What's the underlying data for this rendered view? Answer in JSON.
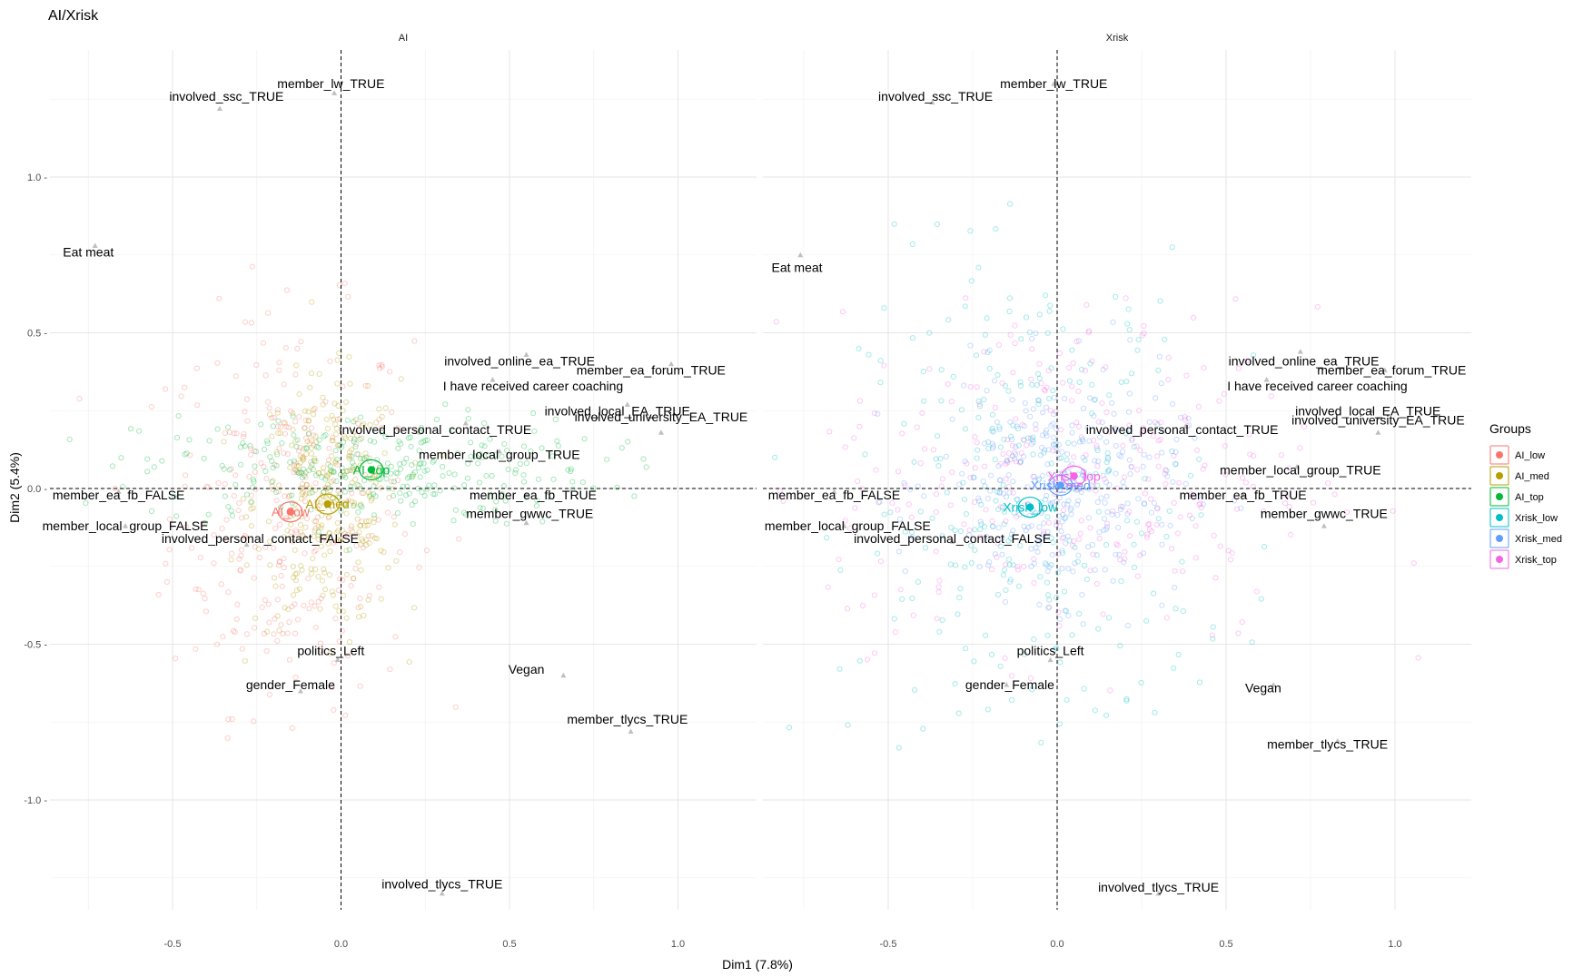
{
  "chart_data": {
    "type": "scatter",
    "title": "AI/Xrisk",
    "xlabel": "Dim1 (7.8%)",
    "ylabel": "Dim2 (5.4%)",
    "xlim": [
      -0.87,
      1.24
    ],
    "ylim": [
      -1.38,
      1.41
    ],
    "x_ticks": [
      {
        "v": -0.5,
        "label": "-0.5"
      },
      {
        "v": 0.0,
        "label": "0.0"
      },
      {
        "v": 0.5,
        "label": "0.5"
      },
      {
        "v": 1.0,
        "label": "1.0"
      }
    ],
    "y_ticks": [
      {
        "v": 1.0,
        "label": "1.0 -"
      },
      {
        "v": 0.5,
        "label": "0.5 -"
      },
      {
        "v": 0.0,
        "label": "0.0 -"
      },
      {
        "v": -0.5,
        "label": "-0.5 -"
      },
      {
        "v": -1.0,
        "label": "-1.0 -"
      }
    ],
    "grid": true,
    "legend": {
      "title": "Groups",
      "position": "right",
      "entries": [
        {
          "name": "AI_low",
          "color": "#F8766D"
        },
        {
          "name": "AI_med",
          "color": "#B79F00"
        },
        {
          "name": "AI_top",
          "color": "#00BA38"
        },
        {
          "name": "Xrisk_low",
          "color": "#00BFC4"
        },
        {
          "name": "Xrisk_med",
          "color": "#619CFF"
        },
        {
          "name": "Xrisk_top",
          "color": "#F564E3"
        }
      ]
    },
    "panels": [
      {
        "strip": "AI",
        "groups": [
          {
            "name": "AI_low",
            "label": "AI_low",
            "color": "#F8766D",
            "x": -0.15,
            "y": -0.075,
            "center": [
              0.2,
              0.35,
              0.3,
              0.26
            ]
          },
          {
            "name": "AI_med",
            "label": "AI_med",
            "color": "#B79F00",
            "x": -0.04,
            "y": -0.05,
            "center": [
              0.12,
              0.22,
              0.28,
              0.26
            ]
          },
          {
            "name": "AI_top",
            "label": "AI_top",
            "color": "#00BA38",
            "x": 0.09,
            "y": 0.06,
            "center": [
              0.38,
              0.1,
              0.32,
              0.28
            ]
          }
        ],
        "variables": [
          {
            "label": "member_lw_TRUE",
            "x": -0.02,
            "y": 1.27,
            "px": -0.03,
            "py": 1.3
          },
          {
            "label": "involved_ssc_TRUE",
            "x": -0.36,
            "y": 1.22,
            "px": -0.34,
            "py": 1.26
          },
          {
            "label": "Eat meat",
            "x": -0.73,
            "y": 0.78,
            "px": -0.75,
            "py": 0.76
          },
          {
            "label": "involved_online_ea_TRUE",
            "x": 0.55,
            "y": 0.43,
            "px": 0.53,
            "py": 0.41
          },
          {
            "label": "member_ea_forum_TRUE",
            "x": 0.98,
            "y": 0.4,
            "px": 0.92,
            "py": 0.38
          },
          {
            "label": "I have received career coaching",
            "x": 0.45,
            "y": 0.35,
            "px": 0.57,
            "py": 0.33
          },
          {
            "label": "involved_local_EA_TRUE",
            "x": 0.85,
            "y": 0.27,
            "px": 0.82,
            "py": 0.25
          },
          {
            "label": "involved_university_EA_TRUE",
            "x": 0.95,
            "y": 0.18,
            "px": 0.95,
            "py": 0.23
          },
          {
            "label": "involved_personal_contact_TRUE",
            "x": 0.37,
            "y": 0.21,
            "px": 0.28,
            "py": 0.19
          },
          {
            "label": "member_local_group_TRUE",
            "x": 0.47,
            "y": 0.12,
            "px": 0.47,
            "py": 0.11
          },
          {
            "label": "member_ea_fb_TRUE",
            "x": 0.55,
            "y": -0.02,
            "px": 0.57,
            "py": -0.02
          },
          {
            "label": "member_gwwc_TRUE",
            "x": 0.55,
            "y": -0.11,
            "px": 0.56,
            "py": -0.08
          },
          {
            "label": "member_ea_fb_FALSE",
            "x": -0.66,
            "y": -0.01,
            "px": -0.66,
            "py": -0.02
          },
          {
            "label": "member_local_group_FALSE",
            "x": -0.64,
            "y": -0.12,
            "px": -0.64,
            "py": -0.12
          },
          {
            "label": "involved_personal_contact_FALSE",
            "x": -0.28,
            "y": -0.18,
            "px": -0.24,
            "py": -0.16
          },
          {
            "label": "politics_Left",
            "x": -0.01,
            "y": -0.55,
            "px": -0.03,
            "py": -0.52
          },
          {
            "label": "gender_Female",
            "x": -0.12,
            "y": -0.65,
            "px": -0.15,
            "py": -0.63
          },
          {
            "label": "Vegan",
            "x": 0.66,
            "y": -0.6,
            "px": 0.55,
            "py": -0.58
          },
          {
            "label": "member_tlycs_TRUE",
            "x": 0.86,
            "y": -0.78,
            "px": 0.85,
            "py": -0.74
          },
          {
            "label": "involved_tlycs_TRUE",
            "x": 0.3,
            "y": -1.3,
            "px": 0.3,
            "py": -1.27
          }
        ]
      },
      {
        "strip": "Xrisk",
        "groups": [
          {
            "name": "Xrisk_low",
            "label": "Xrisk_low",
            "color": "#00BFC4",
            "x": -0.08,
            "y": -0.06,
            "center": [
              0.28,
              0.45,
              0.2,
              0.2
            ]
          },
          {
            "name": "Xrisk_med",
            "label": "Xrisk_med",
            "color": "#619CFF",
            "x": 0.01,
            "y": 0.01,
            "center": [
              0.2,
              0.2,
              0.45,
              0.22
            ]
          },
          {
            "name": "Xrisk_top",
            "label": "Xrisk_top",
            "color": "#F564E3",
            "x": 0.05,
            "y": 0.04,
            "center": [
              0.4,
              0.3,
              0.3,
              0.28
            ]
          }
        ],
        "variables": [
          {
            "label": "member_lw_TRUE",
            "x": -0.01,
            "y": 1.3,
            "px": -0.01,
            "py": 1.3
          },
          {
            "label": "involved_ssc_TRUE",
            "x": -0.37,
            "y": 1.24,
            "px": -0.36,
            "py": 1.26
          },
          {
            "label": "Eat meat",
            "x": -0.76,
            "y": 0.75,
            "px": -0.77,
            "py": 0.71
          },
          {
            "label": "involved_online_ea_TRUE",
            "x": 0.72,
            "y": 0.44,
            "px": 0.73,
            "py": 0.41
          },
          {
            "label": "member_ea_forum_TRUE",
            "x": 0.97,
            "y": 0.38,
            "px": 0.99,
            "py": 0.38
          },
          {
            "label": "I have received career coaching",
            "x": 0.62,
            "y": 0.35,
            "px": 0.77,
            "py": 0.33
          },
          {
            "label": "involved_local_EA_TRUE",
            "x": 0.93,
            "y": 0.25,
            "px": 0.92,
            "py": 0.25
          },
          {
            "label": "involved_university_EA_TRUE",
            "x": 0.95,
            "y": 0.18,
            "px": 0.95,
            "py": 0.22
          },
          {
            "label": "involved_personal_contact_TRUE",
            "x": 0.38,
            "y": 0.2,
            "px": 0.37,
            "py": 0.19
          },
          {
            "label": "member_local_group_TRUE",
            "x": 0.71,
            "y": 0.07,
            "px": 0.72,
            "py": 0.06
          },
          {
            "label": "member_ea_fb_TRUE",
            "x": 0.55,
            "y": -0.02,
            "px": 0.55,
            "py": -0.02
          },
          {
            "label": "member_gwwc_TRUE",
            "x": 0.79,
            "y": -0.12,
            "px": 0.79,
            "py": -0.08
          },
          {
            "label": "member_ea_fb_FALSE",
            "x": -0.66,
            "y": -0.01,
            "px": -0.66,
            "py": -0.02
          },
          {
            "label": "member_local_group_FALSE",
            "x": -0.63,
            "y": -0.12,
            "px": -0.62,
            "py": -0.12
          },
          {
            "label": "involved_personal_contact_FALSE",
            "x": -0.31,
            "y": -0.17,
            "px": -0.31,
            "py": -0.16
          },
          {
            "label": "politics_Left",
            "x": -0.02,
            "y": -0.55,
            "px": -0.02,
            "py": -0.52
          },
          {
            "label": "gender_Female",
            "x": -0.15,
            "y": -0.63,
            "px": -0.14,
            "py": -0.63
          },
          {
            "label": "Vegan",
            "x": 0.64,
            "y": -0.63,
            "px": 0.61,
            "py": -0.64
          },
          {
            "label": "member_tlycs_TRUE",
            "x": 0.83,
            "y": -0.81,
            "px": 0.8,
            "py": -0.82
          },
          {
            "label": "involved_tlycs_TRUE",
            "x": 0.3,
            "y": -1.3,
            "px": 0.3,
            "py": -1.28
          }
        ]
      }
    ]
  }
}
